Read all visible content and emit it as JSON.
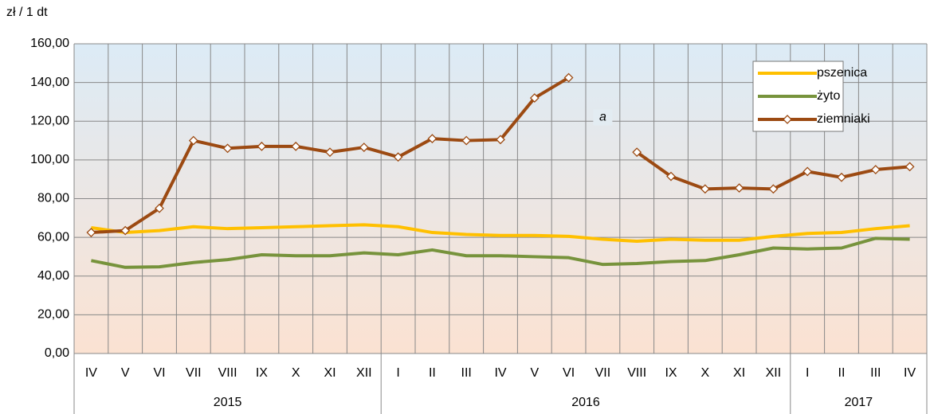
{
  "chart_data": {
    "type": "line",
    "y_label": "zł / 1 dt",
    "categories": [
      "IV",
      "V",
      "VI",
      "VII",
      "VIII",
      "IX",
      "X",
      "XI",
      "XII",
      "I",
      "II",
      "III",
      "IV",
      "V",
      "VI",
      "VII",
      "VIII",
      "IX",
      "X",
      "XI",
      "XII",
      "I",
      "II",
      "III",
      "IV"
    ],
    "groups": [
      {
        "label": "2015",
        "count": 9
      },
      {
        "label": "2016",
        "count": 12
      },
      {
        "label": "2017",
        "count": 4
      }
    ],
    "series": [
      {
        "name": "pszenica",
        "color": "#ffc000",
        "markers": false,
        "values": [
          65,
          62.5,
          63.5,
          65.5,
          64.5,
          65,
          65.5,
          66,
          66.5,
          65.5,
          62.5,
          61.5,
          61,
          61,
          60.5,
          59,
          58,
          59,
          58.5,
          58.5,
          60.5,
          62,
          62.5,
          64.5,
          66
        ]
      },
      {
        "name": "żyto",
        "color": "#77933c",
        "markers": false,
        "values": [
          48,
          44.5,
          44.8,
          47,
          48.5,
          51,
          50.5,
          50.5,
          52,
          51,
          53.5,
          50.5,
          50.5,
          50,
          49.5,
          46,
          46.5,
          47.5,
          48,
          51,
          54.5,
          54,
          54.5,
          59.5,
          59
        ]
      },
      {
        "name": "ziemniaki",
        "color": "#9c4a12",
        "markers": true,
        "values": [
          62.5,
          63.5,
          75,
          110,
          106,
          107,
          107,
          104,
          106.5,
          101.5,
          111,
          110,
          110.5,
          132,
          142.5,
          null,
          104,
          91.5,
          85,
          85.5,
          85,
          94,
          91,
          95,
          96.5
        ]
      }
    ],
    "annotations": [
      {
        "text": "a",
        "category": 15,
        "y": 122
      }
    ],
    "ylim": [
      0,
      160
    ],
    "yticks": [
      {
        "value": 0,
        "label": "0,00"
      },
      {
        "value": 20,
        "label": "20,00"
      },
      {
        "value": 40,
        "label": "40,00"
      },
      {
        "value": 60,
        "label": "60,00"
      },
      {
        "value": 80,
        "label": "80,00"
      },
      {
        "value": 100,
        "label": "100,00"
      },
      {
        "value": 120,
        "label": "120,00"
      },
      {
        "value": 140,
        "label": "140,00"
      },
      {
        "value": 160,
        "label": "160,00"
      }
    ],
    "grid": true,
    "legend": "top-right"
  }
}
